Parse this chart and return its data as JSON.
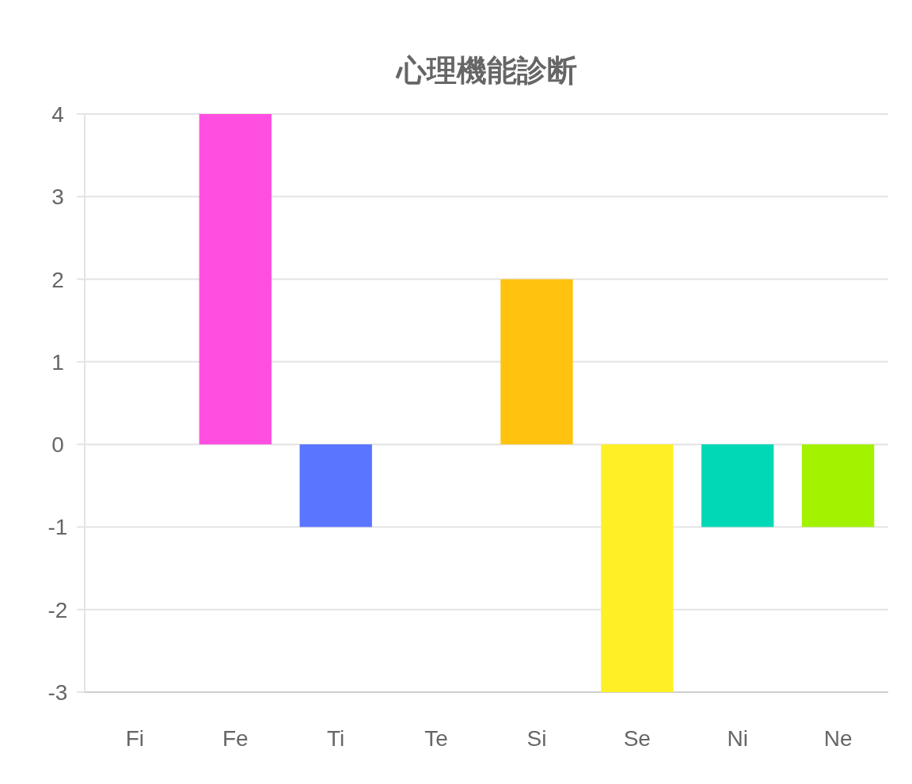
{
  "chart_data": {
    "type": "bar",
    "title": "心理機能診断",
    "categories": [
      "Fi",
      "Fe",
      "Ti",
      "Te",
      "Si",
      "Se",
      "Ni",
      "Ne"
    ],
    "values": [
      0,
      4,
      -1,
      0,
      2,
      -3,
      -1,
      -1
    ],
    "colors": [
      null,
      "#ff4fe0",
      "#5a75ff",
      null,
      "#ffc30f",
      "#fff026",
      "#00d8b6",
      "#a3f200"
    ],
    "ylim": [
      -3,
      4
    ],
    "yticks": [
      -3,
      -2,
      -1,
      0,
      1,
      2,
      3,
      4
    ],
    "grid": "y"
  }
}
